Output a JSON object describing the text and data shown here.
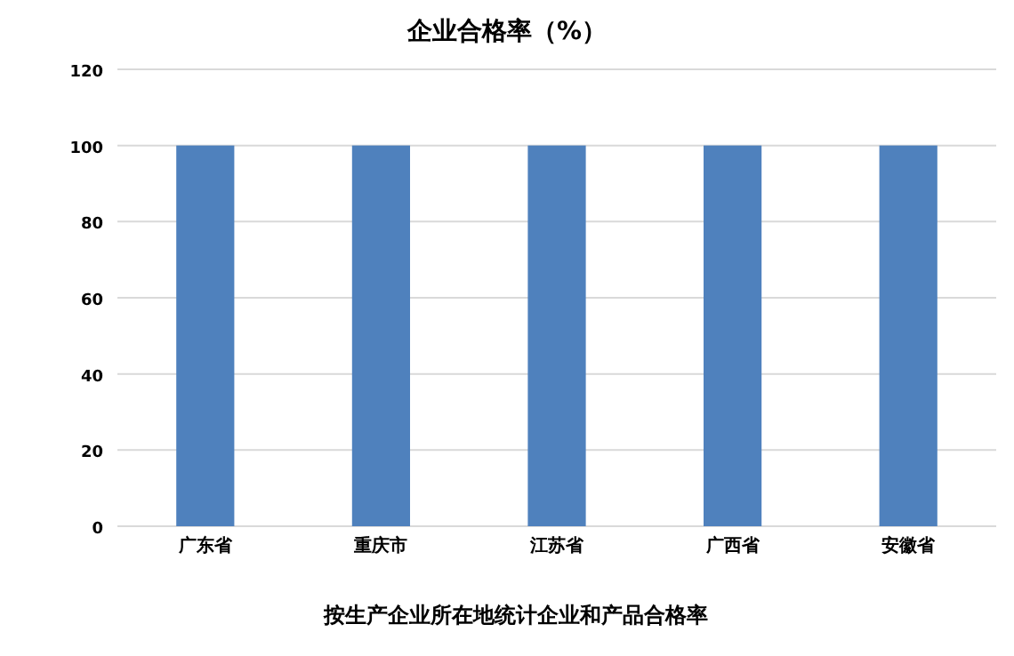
{
  "chart_data": {
    "type": "bar",
    "title": "企业合格率（%）",
    "categories": [
      "广东省",
      "重庆市",
      "江苏省",
      "广西省",
      "安徽省"
    ],
    "values": [
      100,
      100,
      100,
      100,
      100
    ],
    "color": "#4f81bd",
    "ylim": [
      0,
      120
    ],
    "yticks": [
      0,
      20,
      40,
      60,
      80,
      100,
      120
    ],
    "grid": "y",
    "annotations": [
      "按生产企业所在地统计企业和产品合格率"
    ]
  }
}
